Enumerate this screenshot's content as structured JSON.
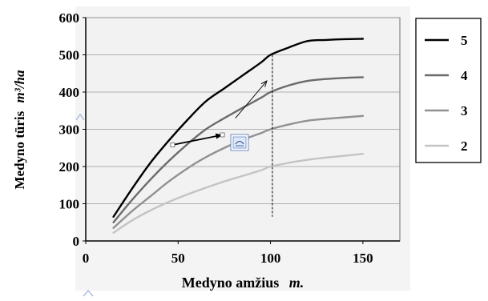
{
  "chart_data": {
    "type": "line",
    "xlabel": "Medyno amžius",
    "xlabel_unit": "m.",
    "ylabel": "Medyno tūris",
    "ylabel_unit": "m³/ha",
    "xlim": [
      0,
      170
    ],
    "ylim": [
      0,
      600
    ],
    "xticks": [
      0,
      50,
      100,
      150
    ],
    "yticks": [
      0,
      100,
      200,
      300,
      400,
      500,
      600
    ],
    "grid": "horizontal",
    "legend_position": "right",
    "series": [
      {
        "name": "5",
        "color": "#000000",
        "x": [
          15,
          25,
          35,
          45,
          55,
          65,
          75,
          85,
          95,
          100,
          110,
          120,
          130,
          140,
          150
        ],
        "y": [
          65,
          140,
          210,
          270,
          325,
          375,
          410,
          445,
          480,
          500,
          520,
          537,
          540,
          542,
          543
        ]
      },
      {
        "name": "4",
        "color": "#6b6b6b",
        "x": [
          15,
          25,
          35,
          45,
          55,
          65,
          75,
          85,
          95,
          100,
          110,
          120,
          130,
          140,
          150
        ],
        "y": [
          50,
          110,
          165,
          215,
          260,
          300,
          330,
          358,
          385,
          400,
          418,
          430,
          435,
          438,
          440
        ]
      },
      {
        "name": "3",
        "color": "#919191",
        "x": [
          15,
          25,
          35,
          45,
          55,
          65,
          75,
          85,
          95,
          100,
          110,
          120,
          130,
          140,
          150
        ],
        "y": [
          35,
          80,
          120,
          160,
          195,
          225,
          250,
          272,
          290,
          300,
          313,
          323,
          328,
          332,
          336
        ]
      },
      {
        "name": "2",
        "color": "#c4c4c4",
        "x": [
          15,
          25,
          35,
          45,
          55,
          65,
          75,
          85,
          95,
          100,
          110,
          120,
          130,
          140,
          150
        ],
        "y": [
          22,
          55,
          82,
          105,
          125,
          143,
          160,
          175,
          190,
          200,
          210,
          218,
          224,
          229,
          234
        ]
      }
    ],
    "annotations": {
      "vertical_dashed_line_x": 101,
      "arrow_diagonal": {
        "from": [
          81,
          330
        ],
        "to": [
          98,
          430
        ]
      },
      "arrow_horizontal": {
        "from": [
          47,
          258
        ],
        "to": [
          74,
          285
        ]
      }
    }
  },
  "colors": {
    "plot_background": "#f2f2f2",
    "gridline": "#9a9a9a"
  }
}
